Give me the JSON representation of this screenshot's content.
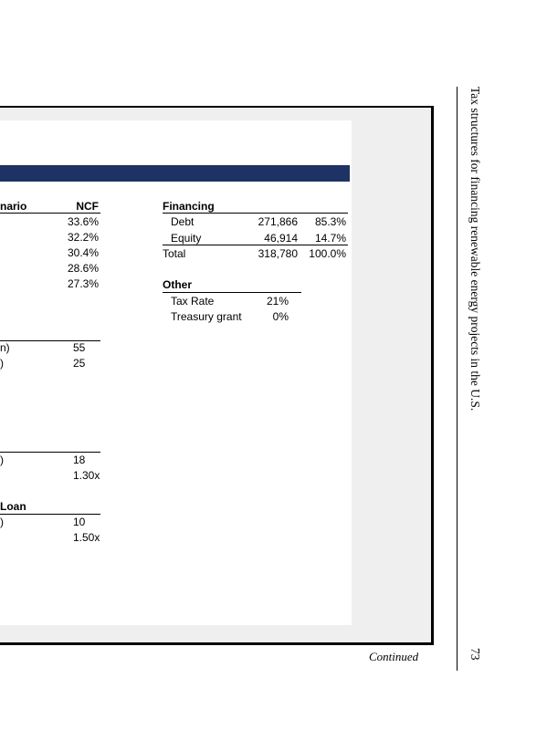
{
  "scenario": {
    "header_fragment": "nario",
    "ncf_header": "NCF",
    "ncf_values": [
      "33.6%",
      "32.2%",
      "30.4%",
      "28.6%",
      "27.3%"
    ]
  },
  "financing": {
    "title": "Financing",
    "rows": [
      [
        "Debt",
        "271,866",
        "85.3%"
      ],
      [
        "Equity",
        "46,914",
        "14.7%"
      ],
      [
        "Total",
        "318,780",
        "100.0%"
      ]
    ]
  },
  "other": {
    "title": "Other",
    "rows": [
      [
        "Tax Rate",
        "21%"
      ],
      [
        "Treasury grant",
        "0%"
      ]
    ]
  },
  "block1": {
    "labels": [
      "n)",
      ")"
    ],
    "values": [
      "55",
      "25"
    ]
  },
  "block2": {
    "labels": [
      ")"
    ],
    "values": [
      "18",
      "1.30x"
    ]
  },
  "block3": {
    "title": "Loan",
    "labels": [
      ")"
    ],
    "values": [
      "10",
      "1.50x"
    ]
  },
  "running_head": "Tax structures for financing renewable energy projects in the U.S.",
  "page_number": "73",
  "continued": "Continued"
}
